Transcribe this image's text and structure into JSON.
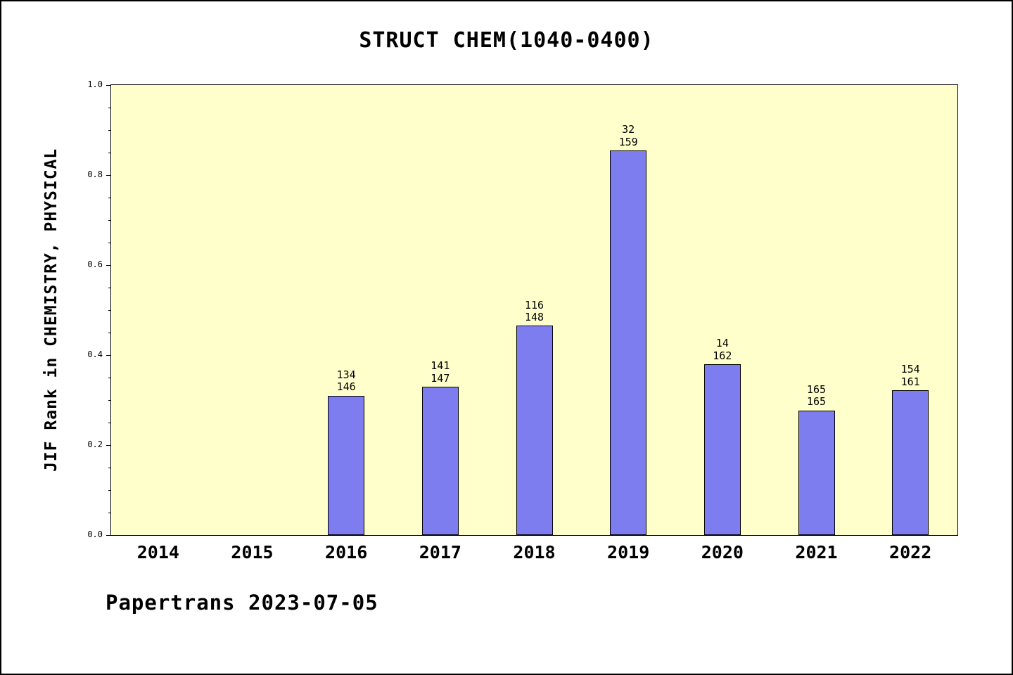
{
  "title": "STRUCT CHEM(1040-0400)",
  "footer": "Papertrans 2023-07-05",
  "colors": {
    "plot_background": "#ffffcc",
    "bar_fill": "#7d7df0",
    "bar_edge": "#000000",
    "frame_border": "#000000"
  },
  "chart_data": {
    "type": "bar",
    "title": "STRUCT CHEM(1040-0400)",
    "xlabel": "",
    "ylabel": "JIF Rank in CHEMISTRY, PHYSICAL",
    "categories": [
      "2014",
      "2015",
      "2016",
      "2017",
      "2018",
      "2019",
      "2020",
      "2021",
      "2022"
    ],
    "values": [
      null,
      null,
      0.31,
      0.33,
      0.465,
      0.855,
      0.38,
      0.277,
      0.322
    ],
    "bar_labels": [
      null,
      null,
      [
        "134",
        "146"
      ],
      [
        "141",
        "147"
      ],
      [
        "116",
        "148"
      ],
      [
        "32",
        "159"
      ],
      [
        "14",
        "162"
      ],
      [
        "165",
        "165"
      ],
      [
        "154",
        "161"
      ]
    ],
    "ylim": [
      0.0,
      1.0
    ],
    "yticks": [
      0.0,
      0.2,
      0.4,
      0.6,
      0.8,
      1.0
    ],
    "ytick_labels": [
      "0.0",
      "0.2",
      "0.4",
      "0.6",
      "0.8",
      "1.0"
    ],
    "minor_tick_step": 0.05,
    "grid": false,
    "legend": false,
    "annotation": "Papertrans 2023-07-05"
  }
}
